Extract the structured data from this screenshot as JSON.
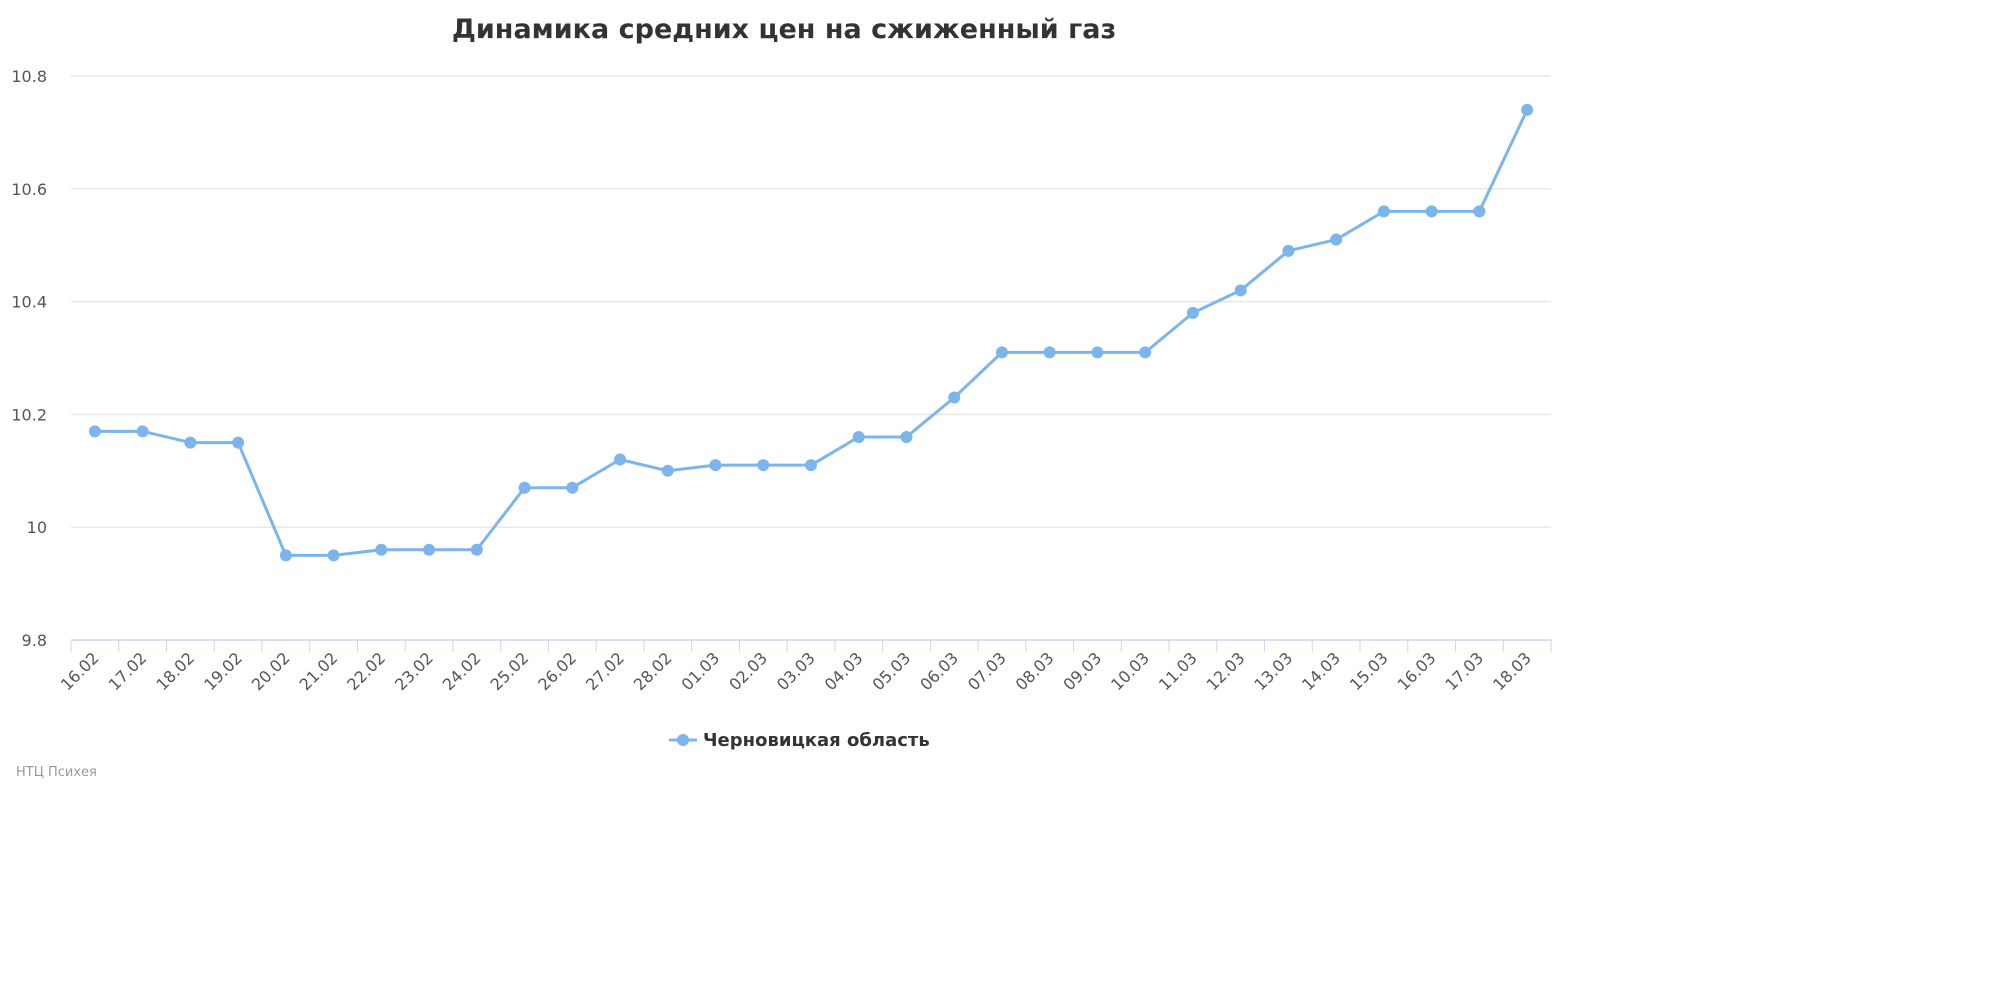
{
  "chart_data": {
    "type": "line",
    "title": "Динамика средних цен на сжиженный газ",
    "xlabel": "",
    "ylabel": "",
    "categories": [
      "16.02",
      "17.02",
      "18.02",
      "19.02",
      "20.02",
      "21.02",
      "22.02",
      "23.02",
      "24.02",
      "25.02",
      "26.02",
      "27.02",
      "28.02",
      "01.03",
      "02.03",
      "03.03",
      "04.03",
      "05.03",
      "06.03",
      "07.03",
      "08.03",
      "09.03",
      "10.03",
      "11.03",
      "12.03",
      "13.03",
      "14.03",
      "15.03",
      "16.03",
      "17.03",
      "18.03"
    ],
    "y_ticks": [
      "9.8",
      "10",
      "10.2",
      "10.4",
      "10.6",
      "10.8"
    ],
    "ylim": [
      9.8,
      10.8
    ],
    "grid": true,
    "legend_position": "bottom-center",
    "series": [
      {
        "name": "Черновицкая область",
        "color": "#7cb5ec",
        "values": [
          10.17,
          10.17,
          10.15,
          10.15,
          9.95,
          9.95,
          9.96,
          9.96,
          9.96,
          10.07,
          10.07,
          10.12,
          10.1,
          10.11,
          10.11,
          10.11,
          10.16,
          10.16,
          10.23,
          10.31,
          10.31,
          10.31,
          10.31,
          10.38,
          10.42,
          10.49,
          10.51,
          10.56,
          10.56,
          10.56,
          10.74
        ]
      }
    ]
  },
  "credits": "НТЦ Психея",
  "colors": {
    "grid": "#e6e6e6",
    "axis": "#ccd6eb",
    "series": "#7cb5ec"
  }
}
